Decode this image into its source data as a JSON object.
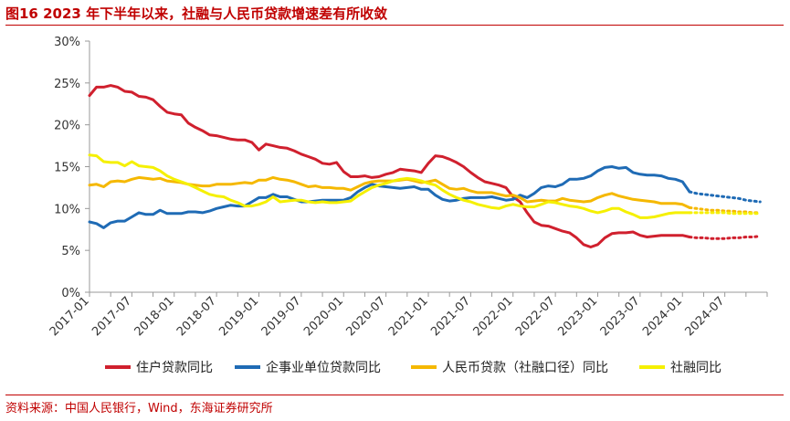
{
  "header": {
    "title": "图16  2023 年下半年以来，社融与人民币贷款增速差有所收敛"
  },
  "footer": {
    "source": "资料来源：中国人民银行，Wind，东海证券研究所"
  },
  "colors": {
    "brand_red": "#c00000",
    "axis": "#999999"
  },
  "chart_data": {
    "type": "line",
    "title": "2023 年下半年以来，社融与人民币贷款增速差有所收敛",
    "xlabel": "",
    "ylabel": "",
    "ylim": [
      0,
      30
    ],
    "yticks": [
      0,
      5,
      10,
      15,
      20,
      25,
      30
    ],
    "ytick_labels": [
      "0%",
      "5%",
      "10%",
      "15%",
      "20%",
      "25%",
      "30%"
    ],
    "xticks": [
      "2017-01",
      "2017-07",
      "2018-01",
      "2018-07",
      "2019-01",
      "2019-07",
      "2020-01",
      "2020-07",
      "2021-01",
      "2021-07",
      "2022-01",
      "2022-07",
      "2023-01",
      "2023-07",
      "2024-01",
      "2024-07"
    ],
    "x_start": "2017-01",
    "x_end": "2024-12",
    "grid": false,
    "legend_position": "bottom",
    "series": [
      {
        "name": "住户贷款同比",
        "color": "#d0202e",
        "values": [
          23.5,
          24.5,
          24.5,
          24.7,
          24.5,
          24.0,
          23.9,
          23.4,
          23.3,
          23.0,
          22.2,
          21.5,
          21.3,
          21.2,
          20.2,
          19.7,
          19.3,
          18.8,
          18.7,
          18.5,
          18.3,
          18.2,
          18.2,
          17.9,
          17.0,
          17.7,
          17.5,
          17.3,
          17.2,
          16.9,
          16.5,
          16.2,
          15.9,
          15.4,
          15.3,
          15.5,
          14.4,
          13.8,
          13.8,
          13.9,
          13.7,
          13.8,
          14.1,
          14.3,
          14.7,
          14.6,
          14.5,
          14.3,
          15.4,
          16.3,
          16.2,
          15.9,
          15.5,
          15.0,
          14.3,
          13.7,
          13.2,
          13.0,
          12.8,
          12.5,
          11.4,
          10.8,
          9.5,
          8.4,
          8.0,
          7.9,
          7.6,
          7.3,
          7.1,
          6.5,
          5.7,
          5.4,
          5.7,
          6.5,
          7.0,
          7.1,
          7.1,
          7.2,
          6.8,
          6.6,
          6.7,
          6.8,
          6.8,
          6.8,
          6.8,
          6.6
        ],
        "forecast": [
          6.6,
          6.5,
          6.5,
          6.4,
          6.4,
          6.4,
          6.5,
          6.5,
          6.6,
          6.6,
          6.7
        ]
      },
      {
        "name": "企事业单位贷款同比",
        "color": "#1f6bb5",
        "values": [
          8.4,
          8.2,
          7.7,
          8.3,
          8.5,
          8.5,
          9.0,
          9.5,
          9.3,
          9.3,
          9.8,
          9.4,
          9.4,
          9.4,
          9.6,
          9.6,
          9.5,
          9.7,
          10.0,
          10.2,
          10.4,
          10.3,
          10.3,
          10.8,
          11.3,
          11.3,
          11.7,
          11.4,
          11.4,
          11.1,
          10.8,
          10.8,
          10.9,
          11.0,
          11.0,
          11.0,
          11.0,
          11.3,
          12.0,
          12.5,
          12.9,
          12.7,
          12.6,
          12.5,
          12.4,
          12.5,
          12.6,
          12.3,
          12.3,
          11.6,
          11.1,
          10.9,
          11.0,
          11.2,
          11.3,
          11.3,
          11.3,
          11.4,
          11.2,
          11.0,
          11.1,
          11.6,
          11.3,
          11.8,
          12.5,
          12.7,
          12.6,
          12.9,
          13.5,
          13.5,
          13.6,
          13.9,
          14.5,
          14.9,
          15.0,
          14.8,
          14.9,
          14.3,
          14.1,
          14.0,
          14.0,
          13.9,
          13.6,
          13.5,
          13.2,
          12.0
        ],
        "forecast": [
          12.0,
          11.8,
          11.7,
          11.6,
          11.5,
          11.4,
          11.3,
          11.2,
          11.0,
          10.9,
          10.8
        ]
      },
      {
        "name": "人民币贷款（社融口径）同比",
        "color": "#f5b800",
        "values": [
          12.8,
          12.9,
          12.6,
          13.2,
          13.3,
          13.2,
          13.5,
          13.7,
          13.6,
          13.5,
          13.6,
          13.3,
          13.2,
          13.1,
          12.9,
          12.8,
          12.7,
          12.7,
          12.9,
          12.9,
          12.9,
          13.0,
          13.1,
          13.0,
          13.4,
          13.4,
          13.7,
          13.5,
          13.4,
          13.2,
          12.9,
          12.6,
          12.7,
          12.5,
          12.5,
          12.4,
          12.4,
          12.2,
          12.6,
          13.0,
          13.2,
          13.3,
          13.3,
          13.3,
          13.4,
          13.5,
          13.3,
          13.1,
          13.2,
          13.4,
          12.9,
          12.4,
          12.3,
          12.4,
          12.1,
          11.9,
          11.9,
          11.9,
          11.7,
          11.5,
          11.6,
          11.3,
          10.8,
          10.9,
          11.0,
          10.9,
          10.9,
          11.2,
          11.0,
          10.9,
          10.8,
          10.9,
          11.3,
          11.6,
          11.8,
          11.5,
          11.3,
          11.1,
          11.0,
          10.9,
          10.8,
          10.6,
          10.6,
          10.6,
          10.5,
          10.1
        ],
        "forecast": [
          10.1,
          10.0,
          9.9,
          9.8,
          9.8,
          9.7,
          9.7,
          9.6,
          9.6,
          9.5,
          9.5
        ]
      },
      {
        "name": "社融同比",
        "color": "#f5f000",
        "values": [
          16.4,
          16.3,
          15.6,
          15.5,
          15.5,
          15.1,
          15.6,
          15.1,
          15.0,
          14.9,
          14.5,
          13.9,
          13.5,
          13.2,
          12.9,
          12.5,
          12.1,
          11.7,
          11.5,
          11.4,
          11.0,
          10.7,
          10.3,
          10.3,
          10.5,
          10.8,
          11.4,
          10.8,
          10.9,
          11.0,
          11.0,
          10.8,
          10.7,
          10.8,
          10.7,
          10.7,
          10.8,
          10.9,
          11.5,
          12.0,
          12.5,
          12.8,
          13.0,
          13.3,
          13.5,
          13.6,
          13.5,
          13.3,
          13.0,
          12.8,
          12.2,
          11.7,
          11.3,
          11.0,
          10.8,
          10.5,
          10.3,
          10.1,
          10.0,
          10.3,
          10.5,
          10.3,
          10.2,
          10.2,
          10.5,
          10.8,
          10.7,
          10.5,
          10.3,
          10.2,
          10.0,
          9.7,
          9.5,
          9.7,
          10.0,
          10.0,
          9.6,
          9.3,
          8.9,
          8.9,
          9.0,
          9.2,
          9.4,
          9.5,
          9.5,
          9.5
        ],
        "forecast": [
          9.5,
          9.5,
          9.5,
          9.5,
          9.5,
          9.5,
          9.4,
          9.4,
          9.4,
          9.4,
          9.4
        ]
      }
    ]
  }
}
